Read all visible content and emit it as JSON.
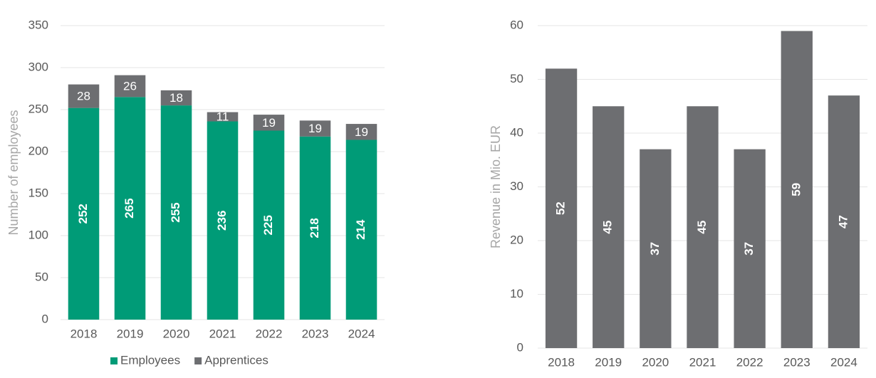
{
  "chart_data": [
    {
      "type": "bar",
      "stacked": true,
      "y_label": "Number of employees",
      "categories": [
        "2018",
        "2019",
        "2020",
        "2021",
        "2022",
        "2023",
        "2024"
      ],
      "series": [
        {
          "name": "Employees",
          "color": "#009b77",
          "values": [
            252,
            265,
            255,
            236,
            225,
            218,
            214
          ]
        },
        {
          "name": "Apprentices",
          "color": "#6d6e71",
          "values": [
            28,
            26,
            18,
            11,
            19,
            19,
            19
          ]
        }
      ],
      "ylim": [
        0,
        350
      ],
      "yticks": [
        0,
        50,
        100,
        150,
        200,
        250,
        300,
        350
      ],
      "grid": true,
      "legend": "bottom"
    },
    {
      "type": "bar",
      "y_label": "Revenue in Mio. EUR",
      "categories": [
        "2018",
        "2019",
        "2020",
        "2021",
        "2022",
        "2023",
        "2024"
      ],
      "values": [
        52,
        45,
        37,
        45,
        37,
        59,
        47
      ],
      "color": "#6d6e71",
      "ylim": [
        0,
        60
      ],
      "yticks": [
        0,
        10,
        20,
        30,
        40,
        50,
        60
      ],
      "grid": true
    }
  ]
}
